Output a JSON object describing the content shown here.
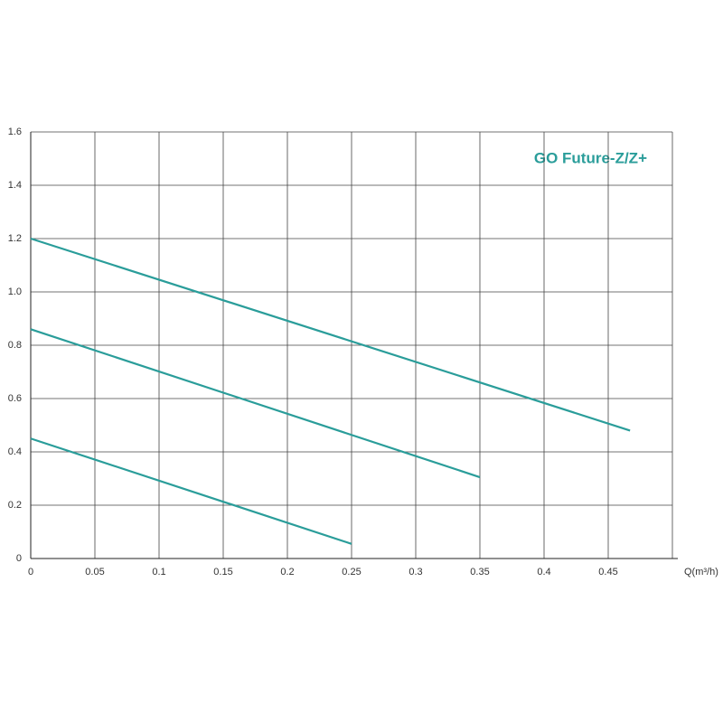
{
  "chart_data": {
    "type": "line",
    "title": "GO Future-Z/Z+",
    "x_label": "Q(m³/h)",
    "xlim": [
      0,
      0.5
    ],
    "xticks": [
      0,
      0.05,
      0.1,
      0.15,
      0.2,
      0.25,
      0.3,
      0.35,
      0.4,
      0.45
    ],
    "ylim": [
      0,
      1.6
    ],
    "yticks": [
      0,
      0.2,
      0.4,
      0.6,
      0.8,
      {
        "value": 1,
        "label": "1.0"
      },
      1.2,
      1.4,
      1.6
    ],
    "grid": true,
    "series": [
      {
        "color": "#2a9d9a",
        "x": [
          0,
          0.467
        ],
        "values": [
          1.2,
          0.48
        ]
      },
      {
        "color": "#2a9d9a",
        "x": [
          0,
          0.35
        ],
        "values": [
          0.86,
          0.305
        ]
      },
      {
        "color": "#2a9d9a",
        "x": [
          0,
          0.25
        ],
        "values": [
          0.45,
          0.055
        ]
      }
    ]
  }
}
